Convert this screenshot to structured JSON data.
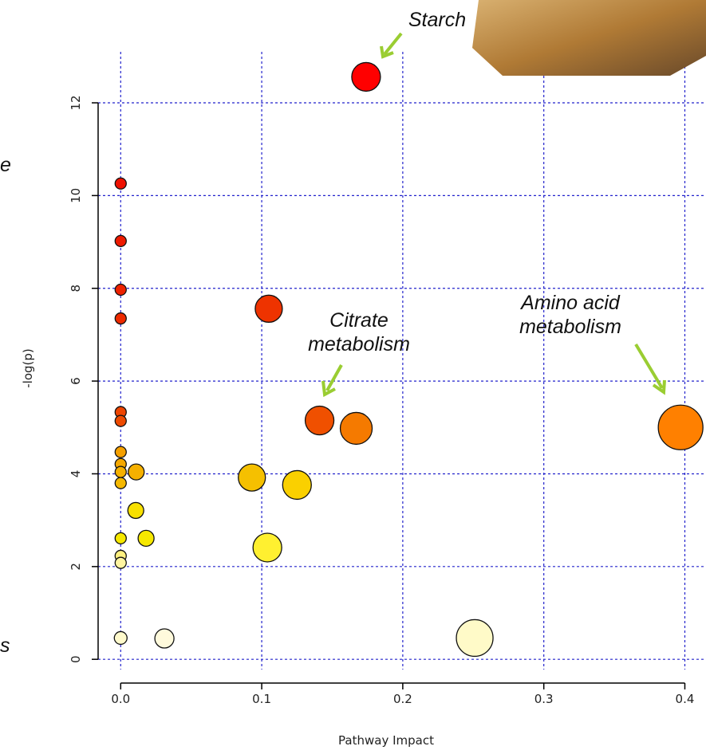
{
  "chart_data": {
    "type": "scatter",
    "x_label": "Pathway Impact",
    "y_label": "-log(p)",
    "xlim": [
      -0.016,
      0.415
    ],
    "ylim": [
      -0.22,
      13.1
    ],
    "xticks": [
      {
        "value": 0,
        "label": "0.0"
      },
      0.1,
      0.2,
      0.3,
      0.4
    ],
    "yticks": [
      0,
      2,
      4,
      6,
      8,
      10,
      12
    ],
    "grid": true,
    "x": [
      0.174,
      0,
      0,
      0,
      0,
      0.105,
      0,
      0,
      0.141,
      0.167,
      0.397,
      0,
      0,
      0,
      0.011,
      0,
      0.093,
      0.125,
      0.0107,
      0.018,
      0,
      0,
      0,
      0.104,
      0,
      0.031,
      0.251
    ],
    "values": [
      12.56,
      10.26,
      9.02,
      7.97,
      7.35,
      7.56,
      5.33,
      5.14,
      5.15,
      4.98,
      5.0,
      4.47,
      4.21,
      4.04,
      4.04,
      3.8,
      3.92,
      3.76,
      3.21,
      2.61,
      2.61,
      2.23,
      2.08,
      2.41,
      0.46,
      0.45,
      0.46
    ],
    "sizes": [
      18,
      7,
      7,
      7,
      7,
      17,
      7,
      7,
      18,
      20,
      28,
      7,
      7,
      7,
      10,
      7,
      17,
      18,
      10,
      10,
      7,
      7,
      7,
      18,
      8,
      12,
      23
    ],
    "colors": [
      "#ff0000",
      "#ee1100",
      "#ee1a00",
      "#ee2200",
      "#ee2a00",
      "#ee3300",
      "#ee4400",
      "#ee4a00",
      "#f05000",
      "#f57a00",
      "#ff8000",
      "#f5a000",
      "#f5a800",
      "#f5b000",
      "#f5b000",
      "#f5b800",
      "#f5c000",
      "#fad000",
      "#f8e000",
      "#f6e800",
      "#f6e800",
      "#fff080",
      "#fff4a0",
      "#fff030",
      "#fffacc",
      "#fffadc",
      "#fffac8"
    ],
    "annotations": [
      [
        "Starch"
      ],
      [
        "Citrate",
        "metabolism"
      ],
      [
        "Amino acid",
        "metabolism"
      ],
      [
        "e"
      ],
      [
        "s"
      ]
    ]
  }
}
